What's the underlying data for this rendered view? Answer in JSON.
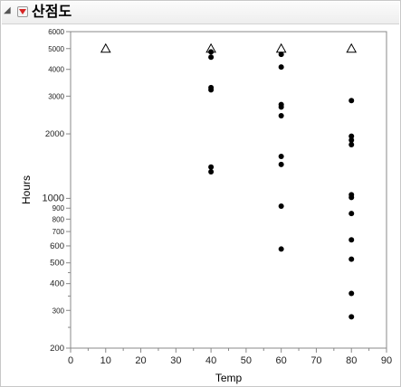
{
  "window": {
    "title": "산점도"
  },
  "icons": {
    "disclosure": "disclosure-triangle-icon",
    "menu": "red-triangle-menu-icon"
  },
  "colors": {
    "point": "#000000",
    "menu_arrow": "#d62424",
    "axis": "#888888"
  },
  "chart_data": {
    "type": "scatter",
    "xlabel": "Temp",
    "ylabel": "Hours",
    "xlim": [
      0,
      90
    ],
    "ylim": [
      200,
      6000
    ],
    "y_scale": "log",
    "grid": false,
    "x_ticks": [
      0,
      10,
      20,
      30,
      40,
      50,
      60,
      70,
      80,
      90
    ],
    "y_ticks_major": [
      200,
      300,
      400,
      500,
      600,
      700,
      800,
      900,
      1000,
      2000,
      3000,
      4000,
      5000,
      6000
    ],
    "y_tick_labels": [
      "200",
      "300",
      "400",
      "500",
      "600",
      "700",
      "800",
      "900",
      "1000",
      "2000",
      "3000",
      "4000",
      "5000",
      "6000"
    ],
    "series": [
      {
        "marker": "triangle",
        "points": [
          [
            10,
            5000
          ],
          [
            40,
            5000
          ],
          [
            60,
            5000
          ],
          [
            80,
            5000
          ]
        ]
      },
      {
        "marker": "dot",
        "points": [
          [
            40,
            4830
          ],
          [
            40,
            4560
          ],
          [
            40,
            3290
          ],
          [
            40,
            3210
          ],
          [
            40,
            1400
          ],
          [
            40,
            1330
          ],
          [
            60,
            4700
          ],
          [
            60,
            4100
          ],
          [
            60,
            2740
          ],
          [
            60,
            2670
          ],
          [
            60,
            2430
          ],
          [
            60,
            1570
          ],
          [
            60,
            1440
          ],
          [
            60,
            920
          ],
          [
            60,
            580
          ],
          [
            80,
            2860
          ],
          [
            80,
            1950
          ],
          [
            80,
            1870
          ],
          [
            80,
            1780
          ],
          [
            80,
            1040
          ],
          [
            80,
            1010
          ],
          [
            80,
            850
          ],
          [
            80,
            640
          ],
          [
            80,
            520
          ],
          [
            80,
            360
          ],
          [
            80,
            280
          ]
        ]
      }
    ]
  }
}
